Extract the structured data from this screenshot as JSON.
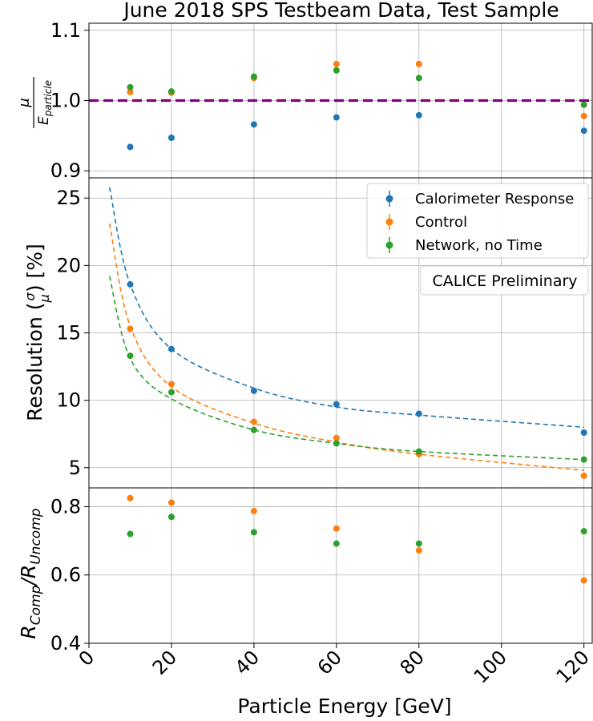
{
  "chart_data": {
    "type": "scatter",
    "title": "June 2018 SPS Testbeam Data, Test Sample",
    "xlabel": "Particle Energy [GeV]",
    "xlim": [
      0,
      122
    ],
    "xticks": [
      0,
      20,
      40,
      60,
      80,
      100,
      120
    ],
    "grid": true,
    "energies": [
      10,
      20,
      40,
      60,
      80,
      120
    ],
    "colors": {
      "Calorimeter Response": "#1f77b4",
      "Control": "#ff7f0e",
      "Network, no Time": "#2ca02c",
      "reference": "#800080"
    },
    "panels": [
      {
        "id": "response",
        "ylabel": "μ / E_particle",
        "ylim": [
          0.89,
          1.11
        ],
        "yticks": [
          "0.9",
          "1.0",
          "1.1"
        ],
        "reference_line": 1.0,
        "series": [
          {
            "name": "Calorimeter Response",
            "values": [
              0.934,
              0.947,
              0.966,
              0.976,
              0.979,
              0.957
            ]
          },
          {
            "name": "Control",
            "values": [
              1.012,
              1.011,
              1.032,
              1.052,
              1.052,
              0.978
            ]
          },
          {
            "name": "Network, no Time",
            "values": [
              1.019,
              1.013,
              1.034,
              1.043,
              1.032,
              0.994
            ]
          }
        ]
      },
      {
        "id": "resolution",
        "ylabel": "Resolution (σ/μ) [%]",
        "ylim": [
          3.5,
          26.5
        ],
        "yticks": [
          "5",
          "10",
          "15",
          "20",
          "25"
        ],
        "legend_position": "top-right",
        "annotation": "CALICE Preliminary",
        "series": [
          {
            "name": "Calorimeter Response",
            "values": [
              18.6,
              13.8,
              10.7,
              9.7,
              9.0,
              7.6
            ],
            "fit": {
              "x": [
                5,
                10,
                20,
                40,
                60,
                80,
                120
              ],
              "y": [
                25.8,
                18.6,
                13.8,
                10.9,
                9.5,
                8.9,
                8.0
              ]
            }
          },
          {
            "name": "Control",
            "values": [
              15.3,
              11.2,
              8.4,
              7.2,
              6.0,
              4.4
            ],
            "fit": {
              "x": [
                5,
                10,
                20,
                40,
                60,
                80,
                120
              ],
              "y": [
                23.1,
                15.5,
                11.0,
                8.3,
                6.9,
                6.0,
                4.8
              ]
            }
          },
          {
            "name": "Network, no Time",
            "values": [
              13.3,
              10.6,
              7.8,
              6.8,
              6.2,
              5.6
            ],
            "fit": {
              "x": [
                5,
                10,
                20,
                40,
                60,
                80,
                120
              ],
              "y": [
                19.2,
                13.1,
                10.1,
                7.8,
                6.8,
                6.2,
                5.6
              ]
            }
          }
        ]
      },
      {
        "id": "ratio",
        "ylabel": "R_Comp / R_Uncomp",
        "ylim": [
          0.4,
          0.855
        ],
        "yticks": [
          "0.4",
          "0.6",
          "0.8"
        ],
        "series": [
          {
            "name": "Control",
            "values": [
              0.825,
              0.812,
              0.787,
              0.736,
              0.672,
              0.584
            ]
          },
          {
            "name": "Network, no Time",
            "values": [
              0.72,
              0.77,
              0.725,
              0.692,
              0.692,
              0.728
            ]
          }
        ]
      }
    ]
  }
}
